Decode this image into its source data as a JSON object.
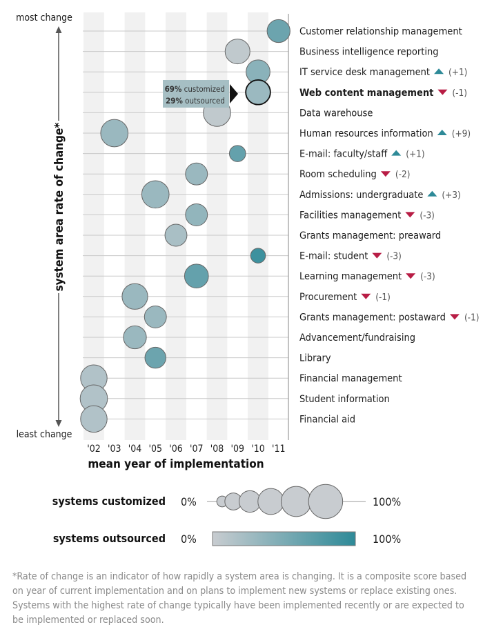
{
  "colors": {
    "band": "#f1f1f1",
    "gridline": "#c8c8c8",
    "frame": "#999999",
    "bubble_stroke": "#666666",
    "low_outsourced": "#c8ccd0",
    "high_outsourced": "#2e8a98",
    "up_arrow": "#2e8a98",
    "down_arrow": "#b81d45"
  },
  "labels": {
    "most_change": "most change",
    "least_change": "least change",
    "y_title": "system area rate of change*",
    "x_title": "mean year of implementation"
  },
  "callout": {
    "customized_pct": "69%",
    "customized_word": "customized",
    "outsourced_pct": "29%",
    "outsourced_word": "outsourced"
  },
  "legend": {
    "customized_title": "systems customized",
    "outsourced_title": "systems outsourced",
    "min_label": "0%",
    "max_label": "100%",
    "size_steps": [
      0.1,
      0.25,
      0.4,
      0.58,
      0.78,
      1.0
    ]
  },
  "footnote": "*Rate of change is an indicator of how rapidly a system area is changing. It is a composite score based on year of current implementation and on plans to implement new systems or replace existing ones. Systems with the highest rate of change typically have been implemented recently or are expected to be implemented or replaced soon.",
  "chart_data": {
    "type": "scatter",
    "title": "",
    "xlabel": "mean year of implementation",
    "ylabel": "system area rate of change*",
    "x_ticks": [
      "'02",
      "'03",
      "'04",
      "'05",
      "'06",
      "'07",
      "'08",
      "'09",
      "'10",
      "'11"
    ],
    "xlim": [
      2001.5,
      2011.5
    ],
    "y_order": "most change (top) to least change (bottom)",
    "points": [
      {
        "name": "Customer relationship management",
        "year": 2011.0,
        "customized": 0.6,
        "outsourced": 0.6,
        "rank_change": ""
      },
      {
        "name": "Business intelligence reporting",
        "year": 2009.0,
        "customized": 0.7,
        "outsourced": 0.05,
        "rank_change": ""
      },
      {
        "name": "IT service desk management",
        "year": 2010.0,
        "customized": 0.65,
        "outsourced": 0.4,
        "rank_change": "(+1)"
      },
      {
        "name": "Web content management",
        "year": 2010.0,
        "customized": 0.69,
        "outsourced": 0.29,
        "rank_change": "(-1)",
        "bold": true
      },
      {
        "name": "Data warehouse",
        "year": 2008.0,
        "customized": 0.85,
        "outsourced": 0.05,
        "rank_change": ""
      },
      {
        "name": "Human resources information",
        "year": 2003.0,
        "customized": 0.85,
        "outsourced": 0.3,
        "rank_change": "(+9)"
      },
      {
        "name": "E-mail: faculty/staff",
        "year": 2009.0,
        "customized": 0.3,
        "outsourced": 0.65,
        "rank_change": "(+1)"
      },
      {
        "name": "Room scheduling",
        "year": 2007.0,
        "customized": 0.55,
        "outsourced": 0.3,
        "rank_change": "(-2)"
      },
      {
        "name": "Admissions: undergraduate",
        "year": 2005.0,
        "customized": 0.85,
        "outsourced": 0.3,
        "rank_change": "(+3)"
      },
      {
        "name": "Facilities management",
        "year": 2007.0,
        "customized": 0.55,
        "outsourced": 0.35,
        "rank_change": "(-3)"
      },
      {
        "name": "Grants management: preaward",
        "year": 2006.0,
        "customized": 0.55,
        "outsourced": 0.2,
        "rank_change": ""
      },
      {
        "name": "E-mail: student",
        "year": 2010.0,
        "customized": 0.25,
        "outsourced": 0.9,
        "rank_change": "(-3)"
      },
      {
        "name": "Learning management",
        "year": 2007.0,
        "customized": 0.65,
        "outsourced": 0.65,
        "rank_change": "(-3)"
      },
      {
        "name": "Procurement",
        "year": 2004.0,
        "customized": 0.75,
        "outsourced": 0.3,
        "rank_change": "(-1)"
      },
      {
        "name": "Grants management: postaward",
        "year": 2005.0,
        "customized": 0.55,
        "outsourced": 0.3,
        "rank_change": "(-1)"
      },
      {
        "name": "Advancement/fundraising",
        "year": 2004.0,
        "customized": 0.6,
        "outsourced": 0.3,
        "rank_change": ""
      },
      {
        "name": "Library",
        "year": 2005.0,
        "customized": 0.5,
        "outsourced": 0.6,
        "rank_change": ""
      },
      {
        "name": "Financial management",
        "year": 2002.0,
        "customized": 0.8,
        "outsourced": 0.15,
        "rank_change": ""
      },
      {
        "name": "Student information",
        "year": 2002.0,
        "customized": 0.85,
        "outsourced": 0.15,
        "rank_change": ""
      },
      {
        "name": "Financial aid",
        "year": 2002.0,
        "customized": 0.8,
        "outsourced": 0.15,
        "rank_change": ""
      }
    ]
  }
}
